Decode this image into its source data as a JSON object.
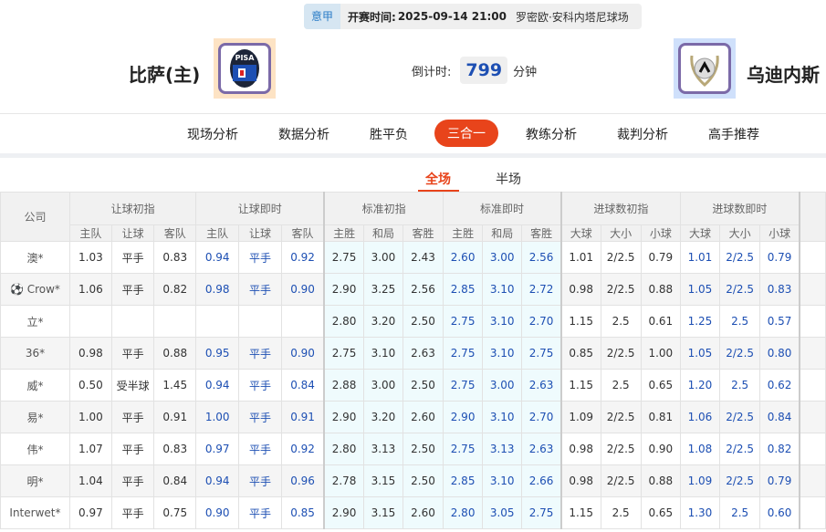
{
  "match": {
    "league": "意甲",
    "time_label": "开赛时间:",
    "time": "2025-09-14 21:00",
    "venue": "罗密欧·安科内塔尼球场"
  },
  "home": {
    "name": "比萨(主)",
    "logo_text": "PISA"
  },
  "away": {
    "name": "乌迪内斯"
  },
  "countdown": {
    "label": "倒计时:",
    "value": "799",
    "unit": "分钟"
  },
  "nav": [
    "现场分析",
    "数据分析",
    "胜平负",
    "三合一",
    "教练分析",
    "裁判分析",
    "高手推荐"
  ],
  "nav_active": 3,
  "subtabs": [
    "全场",
    "半场"
  ],
  "table": {
    "company_header": "公司",
    "groups": [
      "让球初指",
      "让球即时",
      "标准初指",
      "标准即时",
      "进球数初指",
      "进球数即时"
    ],
    "subheaders": [
      "主队",
      "让球",
      "客队",
      "主队",
      "让球",
      "客队",
      "主胜",
      "和局",
      "客胜",
      "主胜",
      "和局",
      "客胜",
      "大球",
      "大小",
      "小球",
      "大球",
      "大小",
      "小球"
    ],
    "rows": [
      {
        "company": "澳*",
        "v": [
          "1.03",
          "平手",
          "0.83",
          "0.94",
          "平手",
          "0.92",
          "2.75",
          "3.00",
          "2.43",
          "2.60",
          "3.00",
          "2.56",
          "1.01",
          "2/2.5",
          "0.79",
          "1.01",
          "2/2.5",
          "0.79"
        ]
      },
      {
        "company": "Crow*",
        "icon": "soccer-ball-icon",
        "v": [
          "1.06",
          "平手",
          "0.82",
          "0.98",
          "平手",
          "0.90",
          "2.90",
          "3.25",
          "2.56",
          "2.85",
          "3.10",
          "2.72",
          "0.98",
          "2/2.5",
          "0.88",
          "1.05",
          "2/2.5",
          "0.83"
        ]
      },
      {
        "company": "立*",
        "v": [
          "",
          "",
          "",
          "",
          "",
          "",
          "2.80",
          "3.20",
          "2.50",
          "2.75",
          "3.10",
          "2.70",
          "1.15",
          "2.5",
          "0.61",
          "1.25",
          "2.5",
          "0.57"
        ]
      },
      {
        "company": "36*",
        "v": [
          "0.98",
          "平手",
          "0.88",
          "0.95",
          "平手",
          "0.90",
          "2.75",
          "3.10",
          "2.63",
          "2.75",
          "3.10",
          "2.75",
          "0.85",
          "2/2.5",
          "1.00",
          "1.05",
          "2/2.5",
          "0.80"
        ]
      },
      {
        "company": "威*",
        "v": [
          "0.50",
          "受半球",
          "1.45",
          "0.94",
          "平手",
          "0.84",
          "2.88",
          "3.00",
          "2.50",
          "2.75",
          "3.00",
          "2.63",
          "1.15",
          "2.5",
          "0.65",
          "1.20",
          "2.5",
          "0.62"
        ]
      },
      {
        "company": "易*",
        "v": [
          "1.00",
          "平手",
          "0.91",
          "1.00",
          "平手",
          "0.91",
          "2.90",
          "3.20",
          "2.60",
          "2.90",
          "3.10",
          "2.70",
          "1.09",
          "2/2.5",
          "0.81",
          "1.06",
          "2/2.5",
          "0.84"
        ]
      },
      {
        "company": "伟*",
        "v": [
          "1.07",
          "平手",
          "0.83",
          "0.97",
          "平手",
          "0.92",
          "2.80",
          "3.13",
          "2.50",
          "2.75",
          "3.13",
          "2.63",
          "0.98",
          "2/2.5",
          "0.90",
          "1.08",
          "2/2.5",
          "0.82"
        ]
      },
      {
        "company": "明*",
        "v": [
          "1.04",
          "平手",
          "0.84",
          "0.94",
          "平手",
          "0.96",
          "2.78",
          "3.15",
          "2.50",
          "2.85",
          "3.10",
          "2.66",
          "0.98",
          "2/2.5",
          "0.88",
          "1.09",
          "2/2.5",
          "0.79"
        ]
      },
      {
        "company": "Interwet*",
        "v": [
          "0.97",
          "平手",
          "0.75",
          "0.90",
          "平手",
          "0.85",
          "2.90",
          "3.15",
          "2.60",
          "2.80",
          "3.05",
          "2.75",
          "1.15",
          "2.5",
          "0.65",
          "1.30",
          "2.5",
          "0.60"
        ]
      }
    ]
  },
  "colors": {
    "accent": "#e8441b",
    "live_odds": "#1d4fb3",
    "standard_bg": "#effbfd"
  }
}
